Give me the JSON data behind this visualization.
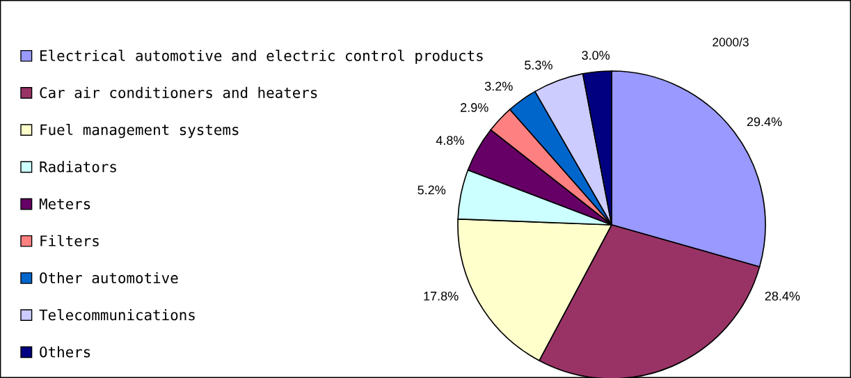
{
  "chart_data": {
    "type": "pie",
    "title": "2000/3",
    "categories": [
      "Electrical automotive and electric control products",
      "Car air conditioners and heaters",
      "Fuel management systems",
      "Radiators",
      "Meters",
      "Filters",
      "Other automotive",
      "Telecommunications",
      "Others"
    ],
    "values": [
      29.4,
      28.4,
      17.8,
      5.2,
      4.8,
      2.9,
      3.2,
      5.3,
      3.0
    ],
    "value_labels": [
      "29.4%",
      "28.4%",
      "17.8%",
      "5.2%",
      "4.8%",
      "2.9%",
      "3.2%",
      "5.3%",
      "3.0%"
    ],
    "colors": [
      "#9999ff",
      "#993366",
      "#ffffcc",
      "#ccffff",
      "#660066",
      "#ff8080",
      "#0066cc",
      "#ccccff",
      "#000080"
    ],
    "legend": "left"
  }
}
